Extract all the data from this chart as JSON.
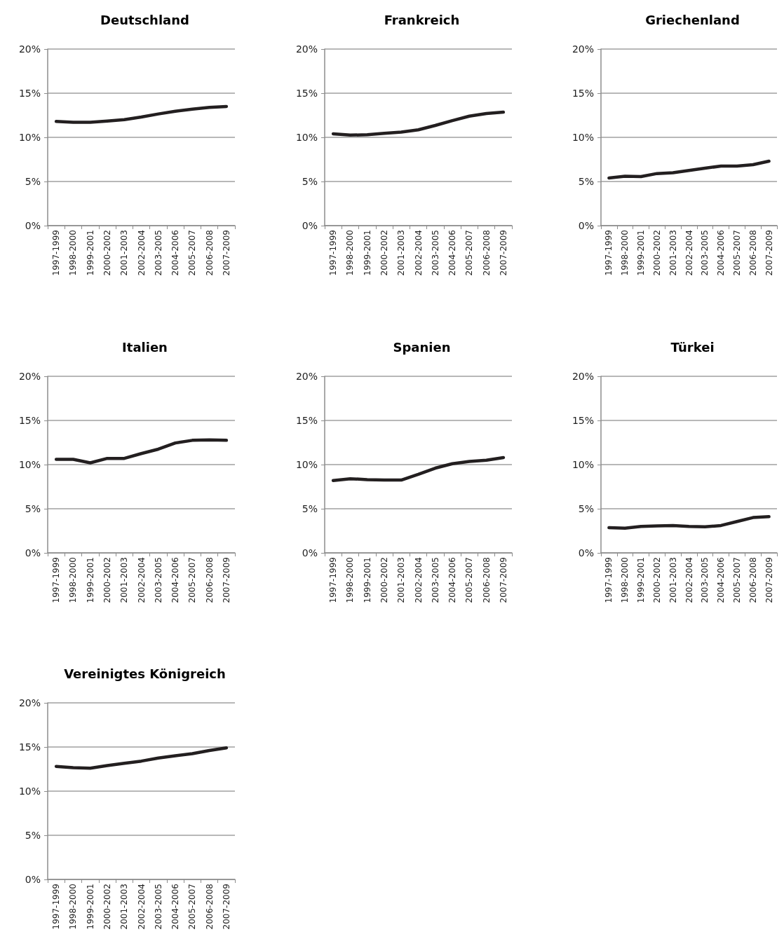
{
  "chart_data": [
    {
      "type": "line",
      "title": "Deutschland",
      "categories": [
        "1997-1999",
        "1998-2000",
        "1999-2001",
        "2000-2002",
        "2001-2003",
        "2002-2004",
        "2003-2005",
        "2004-2006",
        "2005-2007",
        "2006-2008",
        "2007-2009"
      ],
      "series": [
        {
          "color": "#231f20",
          "values": [
            11.8,
            11.7,
            11.7,
            11.85,
            12.0,
            12.3,
            12.65,
            12.95,
            13.2,
            13.4,
            13.5
          ]
        }
      ],
      "ylim": [
        0,
        20
      ],
      "yticks": [
        {
          "value": 0,
          "label": "0%"
        },
        {
          "value": 5,
          "label": "5%"
        },
        {
          "value": 10,
          "label": "10%"
        },
        {
          "value": 15,
          "label": "15%"
        },
        {
          "value": 20,
          "label": "20%"
        }
      ],
      "grid": "y",
      "marker": "none",
      "line_style": "solid"
    },
    {
      "type": "line",
      "title": "Frankreich",
      "categories": [
        "1997-1999",
        "1998-2000",
        "1999-2001",
        "2000-2002",
        "2001-2003",
        "2002-2004",
        "2003-2005",
        "2004-2006",
        "2005-2007",
        "2006-2008",
        "2007-2009"
      ],
      "series": [
        {
          "color": "#231f20",
          "values": [
            10.4,
            10.25,
            10.3,
            10.45,
            10.6,
            10.85,
            11.35,
            11.9,
            12.4,
            12.7,
            12.85
          ]
        }
      ],
      "ylim": [
        0,
        20
      ],
      "yticks": [
        {
          "value": 0,
          "label": "0%"
        },
        {
          "value": 5,
          "label": "5%"
        },
        {
          "value": 10,
          "label": "10%"
        },
        {
          "value": 15,
          "label": "15%"
        },
        {
          "value": 20,
          "label": "20%"
        }
      ],
      "grid": "y",
      "marker": "none",
      "line_style": "solid"
    },
    {
      "type": "line",
      "title": "Griechenland",
      "categories": [
        "1997-1999",
        "1998-2000",
        "1999-2001",
        "2000-2002",
        "2001-2003",
        "2002-2004",
        "2003-2005",
        "2004-2006",
        "2005-2007",
        "2006-2008",
        "2007-2009"
      ],
      "series": [
        {
          "color": "#231f20",
          "values": [
            5.4,
            5.6,
            5.55,
            5.9,
            6.0,
            6.25,
            6.5,
            6.75,
            6.75,
            6.9,
            7.3
          ]
        }
      ],
      "ylim": [
        0,
        20
      ],
      "yticks": [
        {
          "value": 0,
          "label": "0%"
        },
        {
          "value": 5,
          "label": "5%"
        },
        {
          "value": 10,
          "label": "10%"
        },
        {
          "value": 15,
          "label": "15%"
        },
        {
          "value": 20,
          "label": "20%"
        }
      ],
      "grid": "y",
      "marker": "none",
      "line_style": "solid"
    },
    {
      "type": "line",
      "title": "Italien",
      "categories": [
        "1997-1999",
        "1998-2000",
        "1999-2001",
        "2000-2002",
        "2001-2003",
        "2002-2004",
        "2003-2005",
        "2004-2006",
        "2005-2007",
        "2006-2008",
        "2007-2009"
      ],
      "series": [
        {
          "color": "#231f20",
          "values": [
            10.6,
            10.6,
            10.2,
            10.7,
            10.7,
            11.25,
            11.75,
            12.45,
            12.75,
            12.8,
            12.75
          ]
        }
      ],
      "ylim": [
        0,
        20
      ],
      "yticks": [
        {
          "value": 0,
          "label": "0%"
        },
        {
          "value": 5,
          "label": "5%"
        },
        {
          "value": 10,
          "label": "10%"
        },
        {
          "value": 15,
          "label": "15%"
        },
        {
          "value": 20,
          "label": "20%"
        }
      ],
      "grid": "y",
      "marker": "none",
      "line_style": "solid"
    },
    {
      "type": "line",
      "title": "Spanien",
      "categories": [
        "1997-1999",
        "1998-2000",
        "1999-2001",
        "2000-2002",
        "2001-2003",
        "2002-2004",
        "2003-2005",
        "2004-2006",
        "2005-2007",
        "2006-2008",
        "2007-2009"
      ],
      "series": [
        {
          "color": "#231f20",
          "values": [
            8.2,
            8.4,
            8.3,
            8.25,
            8.25,
            8.9,
            9.6,
            10.1,
            10.35,
            10.5,
            10.8
          ]
        }
      ],
      "ylim": [
        0,
        20
      ],
      "yticks": [
        {
          "value": 0,
          "label": "0%"
        },
        {
          "value": 5,
          "label": "5%"
        },
        {
          "value": 10,
          "label": "10%"
        },
        {
          "value": 15,
          "label": "15%"
        },
        {
          "value": 20,
          "label": "20%"
        }
      ],
      "grid": "y",
      "marker": "none",
      "line_style": "solid"
    },
    {
      "type": "line",
      "title": "Türkei",
      "categories": [
        "1997-1999",
        "1998-2000",
        "1999-2001",
        "2000-2002",
        "2001-2003",
        "2002-2004",
        "2003-2005",
        "2004-2006",
        "2005-2007",
        "2006-2008",
        "2007-2009"
      ],
      "series": [
        {
          "color": "#231f20",
          "values": [
            2.85,
            2.8,
            3.0,
            3.05,
            3.1,
            3.0,
            2.95,
            3.1,
            3.55,
            4.0,
            4.1
          ]
        }
      ],
      "ylim": [
        0,
        20
      ],
      "yticks": [
        {
          "value": 0,
          "label": "0%"
        },
        {
          "value": 5,
          "label": "5%"
        },
        {
          "value": 10,
          "label": "10%"
        },
        {
          "value": 15,
          "label": "15%"
        },
        {
          "value": 20,
          "label": "20%"
        }
      ],
      "grid": "y",
      "marker": "none",
      "line_style": "solid"
    },
    {
      "type": "line",
      "title": "Vereinigtes Königreich",
      "categories": [
        "1997-1999",
        "1998-2000",
        "1999-2001",
        "2000-2002",
        "2001-2003",
        "2002-2004",
        "2003-2005",
        "2004-2006",
        "2005-2007",
        "2006-2008",
        "2007-2009"
      ],
      "series": [
        {
          "color": "#231f20",
          "values": [
            12.8,
            12.65,
            12.6,
            12.9,
            13.15,
            13.4,
            13.75,
            14.0,
            14.25,
            14.6,
            14.9
          ]
        }
      ],
      "ylim": [
        0,
        20
      ],
      "yticks": [
        {
          "value": 0,
          "label": "0%"
        },
        {
          "value": 5,
          "label": "5%"
        },
        {
          "value": 10,
          "label": "10%"
        },
        {
          "value": 15,
          "label": "15%"
        },
        {
          "value": 20,
          "label": "20%"
        }
      ],
      "grid": "y",
      "marker": "none",
      "line_style": "solid"
    }
  ]
}
